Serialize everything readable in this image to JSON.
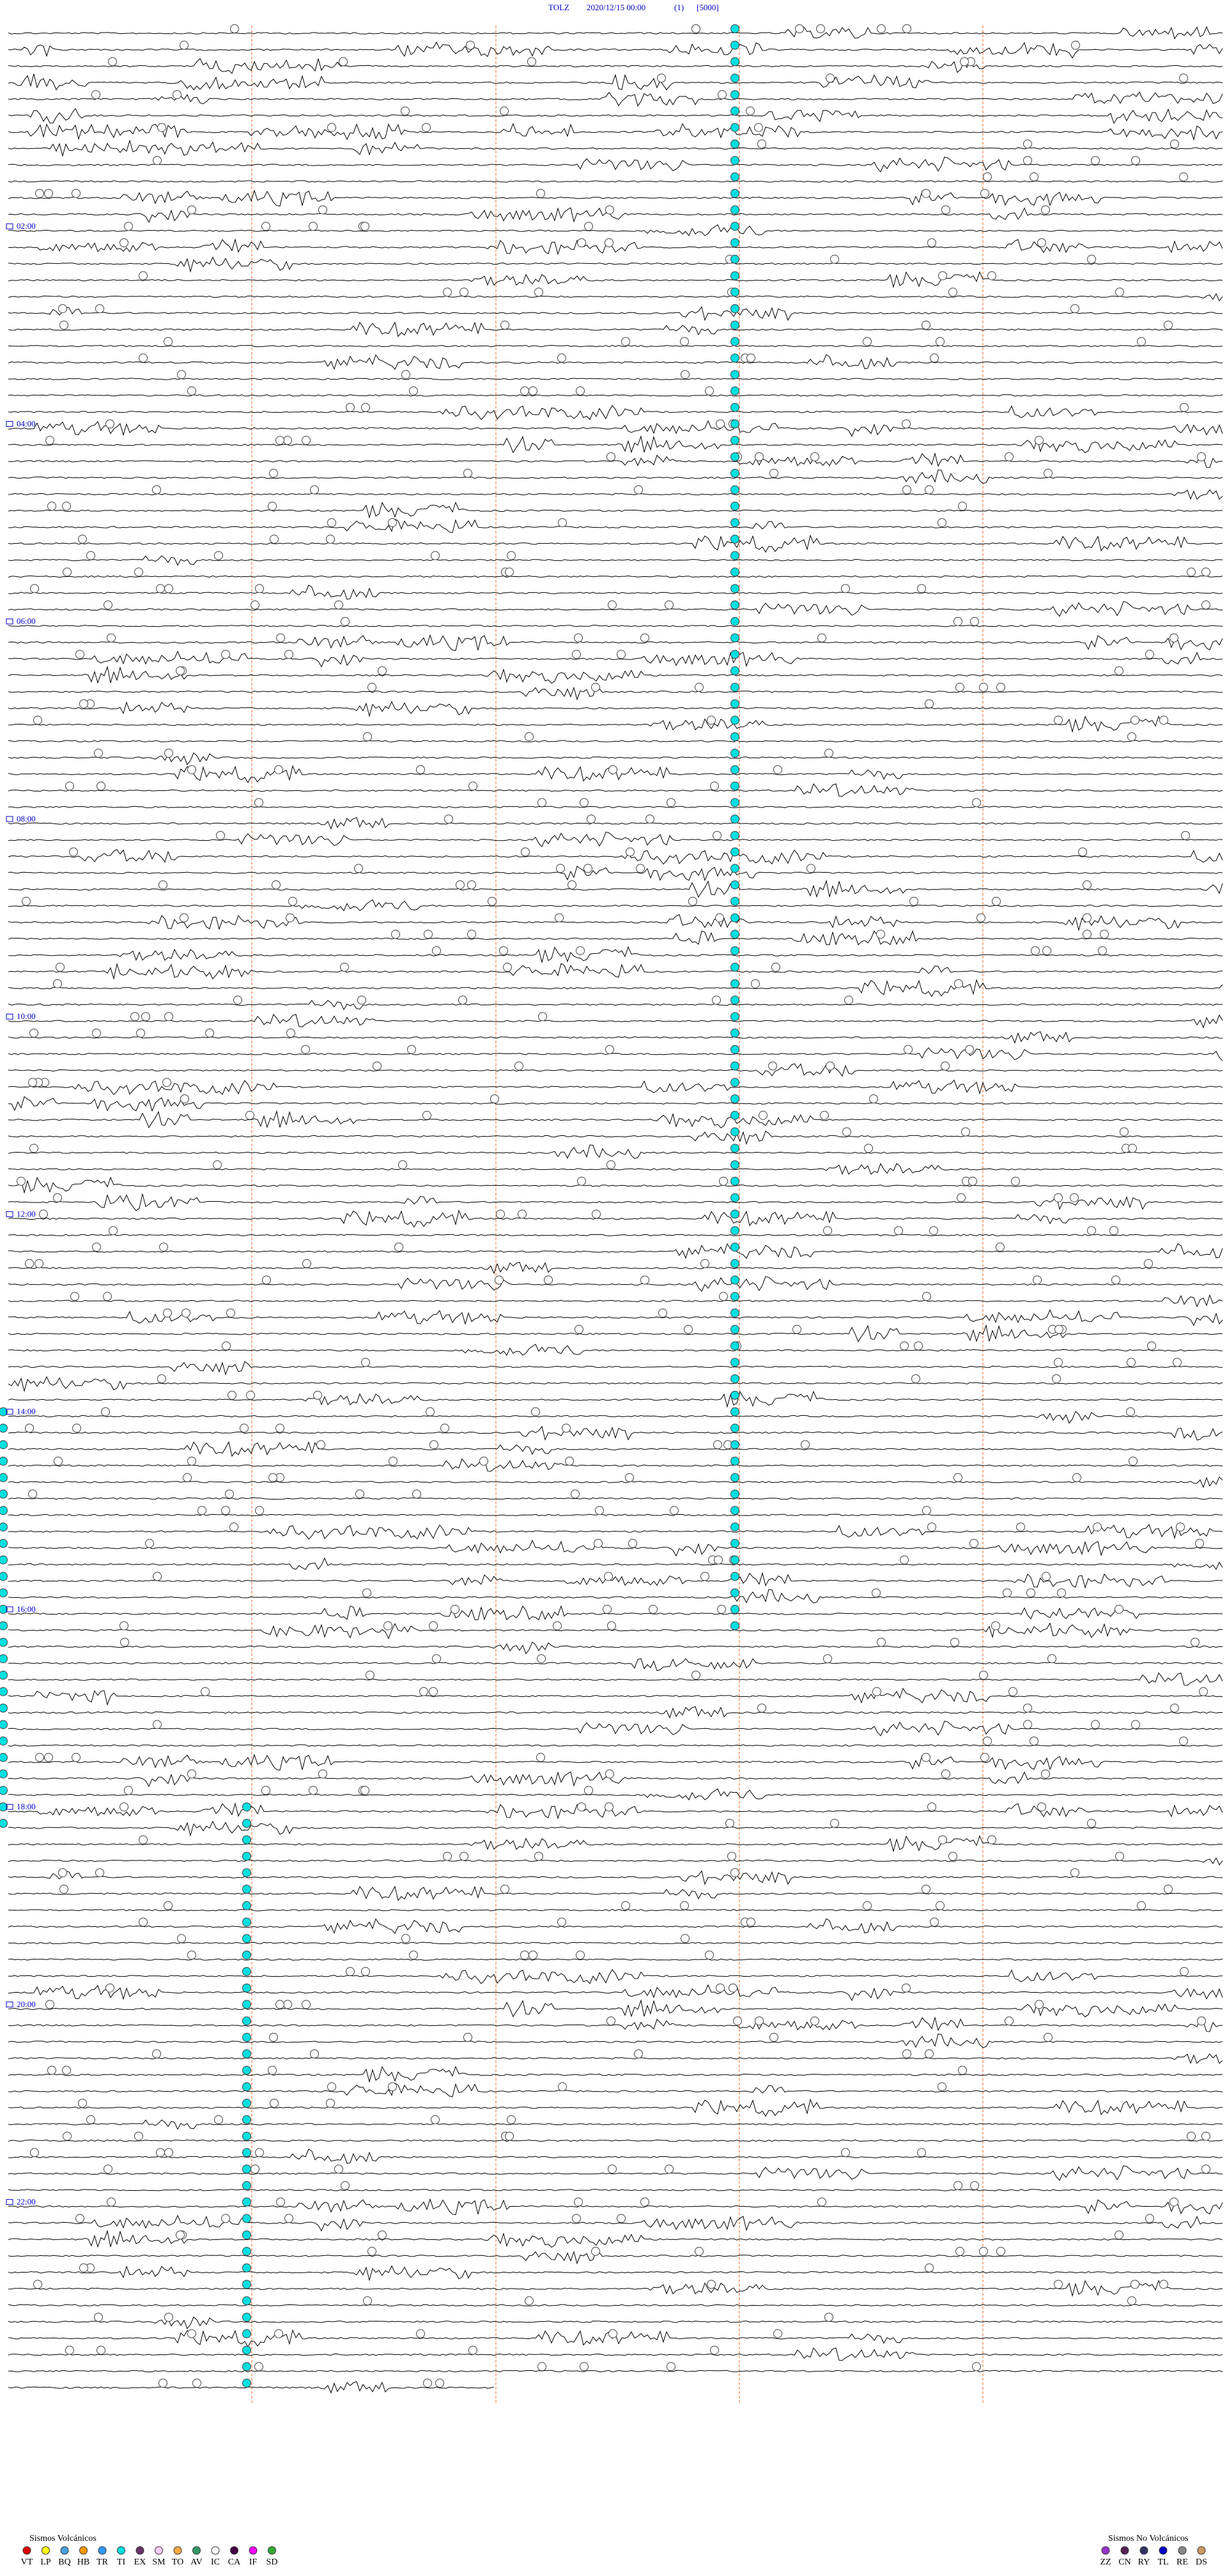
{
  "header": {
    "station": "TOLZ",
    "datetime": "2020/12/15 00:00",
    "component": "(1)",
    "scale": "[5000]"
  },
  "time_labels": [
    "02:00",
    "04:00",
    "06:00",
    "08:00",
    "10:00",
    "12:00",
    "14:00",
    "16:00",
    "18:00",
    "20:00",
    "22:00"
  ],
  "legend": {
    "volcanic": {
      "title": "Sismos Volcánicos",
      "items": [
        {
          "code": "VT",
          "color": "#e00000"
        },
        {
          "code": "LP",
          "color": "#ffff00"
        },
        {
          "code": "BQ",
          "color": "#4aa0e0"
        },
        {
          "code": "HB",
          "color": "#ff9900"
        },
        {
          "code": "TR",
          "color": "#3399ff"
        },
        {
          "code": "TI",
          "color": "#00e0e0"
        },
        {
          "code": "EX",
          "color": "#663366"
        },
        {
          "code": "SM",
          "color": "#ffccff"
        },
        {
          "code": "TO",
          "color": "#ffaa44"
        },
        {
          "code": "AV",
          "color": "#339966"
        },
        {
          "code": "IC",
          "color": "#ffffff"
        },
        {
          "code": "CA",
          "color": "#440044"
        },
        {
          "code": "IF",
          "color": "#ff00ff"
        },
        {
          "code": "SD",
          "color": "#33aa33"
        }
      ]
    },
    "non_volcanic": {
      "title": "Sismos No Volcánicos",
      "items": [
        {
          "code": "ZZ",
          "color": "#9933cc"
        },
        {
          "code": "CN",
          "color": "#552255"
        },
        {
          "code": "RY",
          "color": "#333366"
        },
        {
          "code": "TL",
          "color": "#0000cc"
        },
        {
          "code": "RE",
          "color": "#888888"
        },
        {
          "code": "DS",
          "color": "#cc9966"
        }
      ]
    }
  }
}
